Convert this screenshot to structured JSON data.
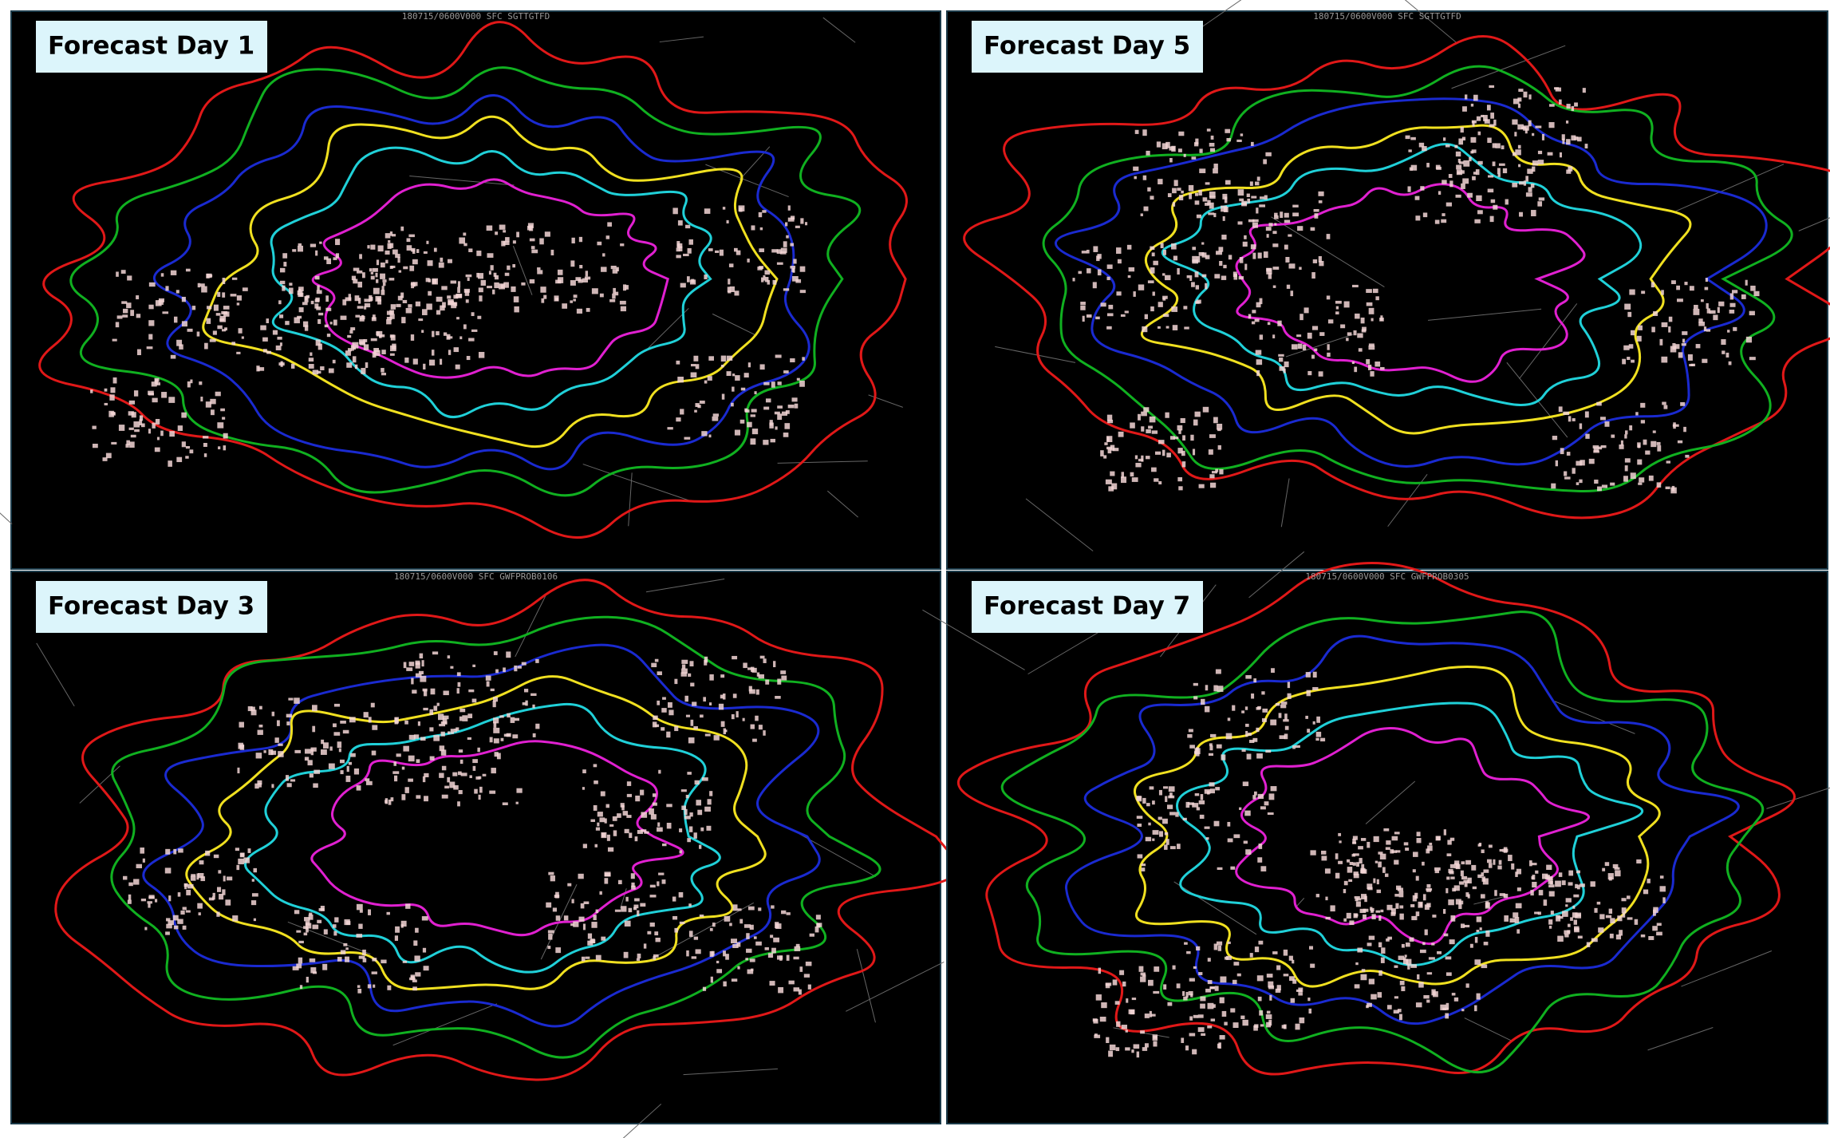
{
  "panels": [
    {
      "label": "Forecast Day 1",
      "header": "180715/0600V000 SFC SGTTGTFD"
    },
    {
      "label": "Forecast Day 5",
      "header": "180715/0600V000 SFC SGTTGTFD"
    },
    {
      "label": "Forecast Day 3",
      "header": "180715/0600V000 SFC GWFPROB0106"
    },
    {
      "label": "Forecast Day 7",
      "header": "180715/0600V000 SFC GWFPROB0305"
    }
  ]
}
